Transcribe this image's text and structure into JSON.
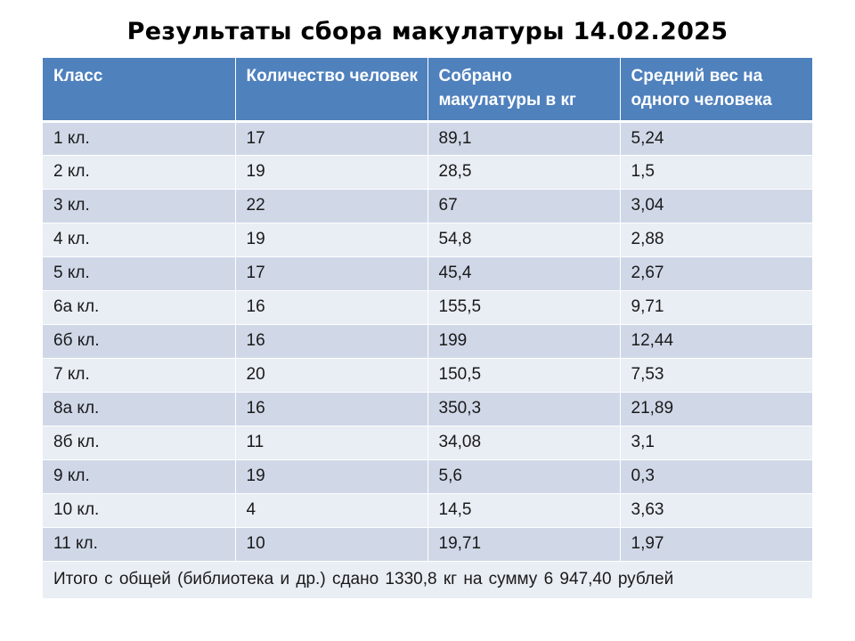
{
  "title": "Результаты сбора  макулатуры 14.02.2025",
  "table": {
    "headers": [
      "Класс",
      "Количество человек",
      "Собрано макулатуры в кг",
      "Средний вес на одного человека"
    ],
    "rows": [
      [
        "1 кл.",
        "17",
        "89,1",
        "5,24"
      ],
      [
        "2 кл.",
        "19",
        "28,5",
        "1,5"
      ],
      [
        "3 кл.",
        "22",
        "67",
        "3,04"
      ],
      [
        "4 кл.",
        "19",
        "54,8",
        "2,88"
      ],
      [
        "5 кл.",
        "17",
        "45,4",
        "2,67"
      ],
      [
        "6а кл.",
        "16",
        "155,5",
        "9,71"
      ],
      [
        "6б кл.",
        "16",
        "199",
        "12,44"
      ],
      [
        "7 кл.",
        "20",
        "150,5",
        "7,53"
      ],
      [
        "8а кл.",
        "16",
        "350,3",
        "21,89"
      ],
      [
        "8б кл.",
        "11",
        "34,08",
        "3,1"
      ],
      [
        "9 кл.",
        "19",
        "5,6",
        "0,3"
      ],
      [
        "10 кл.",
        "4",
        "14,5",
        "3,63"
      ],
      [
        "11 кл.",
        "10",
        "19,71",
        "1,97"
      ]
    ],
    "total": "Итого  с  общей (библиотека и др.)  сдано  1330,8 кг  на сумму  6 947,40 рублей"
  },
  "colors": {
    "header_bg": "#4f81bd",
    "row_odd": "#d0d8e8",
    "row_even": "#e9edf4"
  }
}
